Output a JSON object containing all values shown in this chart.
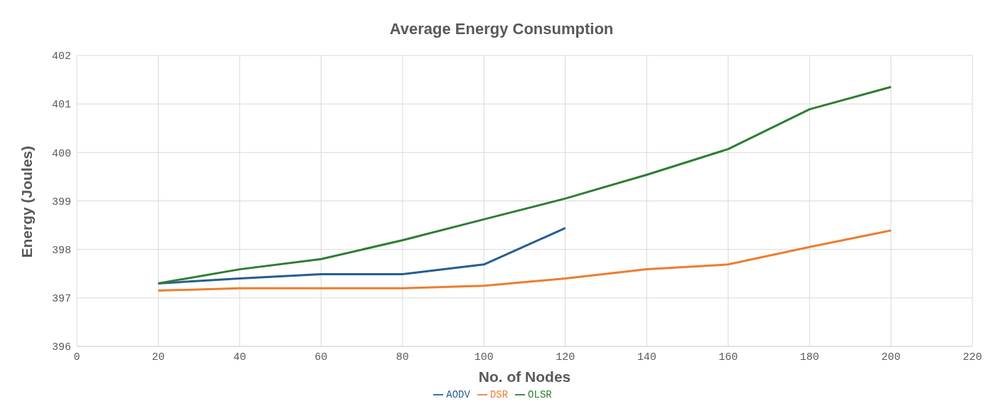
{
  "chart_data": {
    "type": "line",
    "title": "Average Energy Consumption",
    "xlabel": "No. of Nodes",
    "ylabel": "Energy (Joules)",
    "series": [
      {
        "name": "AODV",
        "color": "#255e91",
        "x": [
          20,
          40,
          60,
          80,
          100,
          120
        ],
        "values": [
          397.3,
          397.4,
          397.49,
          397.49,
          397.69,
          398.44
        ]
      },
      {
        "name": "DSR",
        "color": "#ed7d31",
        "x": [
          20,
          40,
          60,
          80,
          100,
          120,
          140,
          160,
          180,
          200
        ],
        "values": [
          397.15,
          397.2,
          397.2,
          397.2,
          397.25,
          397.4,
          397.59,
          397.69,
          398.05,
          398.39
        ]
      },
      {
        "name": "OLSR",
        "color": "#2e7d32",
        "x": [
          20,
          40,
          60,
          80,
          100,
          120,
          140,
          160,
          180,
          200
        ],
        "values": [
          397.3,
          397.59,
          397.8,
          398.19,
          398.62,
          399.05,
          399.54,
          400.07,
          400.89,
          401.35
        ]
      }
    ],
    "xlim": [
      0,
      220
    ],
    "xticks": [
      0,
      20,
      40,
      60,
      80,
      100,
      120,
      140,
      160,
      180,
      200,
      220
    ],
    "ylim": [
      396,
      402
    ],
    "yticks": [
      396,
      397,
      398,
      399,
      400,
      401,
      402
    ],
    "grid": true,
    "legend": "bottom",
    "marker": "none",
    "line_style": "solid"
  }
}
